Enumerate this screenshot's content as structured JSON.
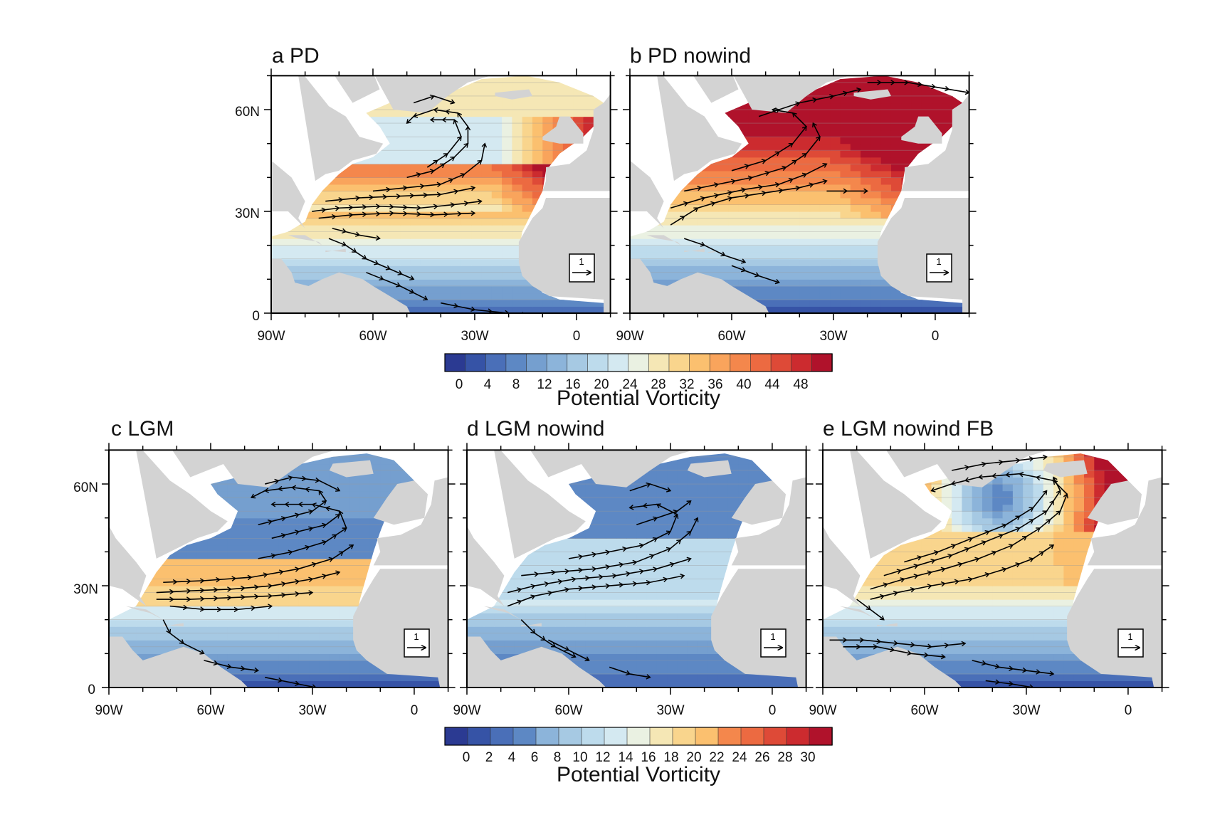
{
  "figure": {
    "panels": [
      {
        "id": "a",
        "title": "a PD",
        "lat_ticks": [
          "60N",
          "30N",
          "0"
        ],
        "lon_ticks": [
          "90W",
          "60W",
          "30W",
          "0"
        ],
        "reference_vector": "1"
      },
      {
        "id": "b",
        "title": "b PD nowind",
        "lat_ticks": [],
        "lon_ticks": [
          "90W",
          "60W",
          "30W",
          "0"
        ],
        "reference_vector": "1"
      },
      {
        "id": "c",
        "title": "c LGM",
        "lat_ticks": [
          "60N",
          "30N",
          "0"
        ],
        "lon_ticks": [
          "90W",
          "60W",
          "30W",
          "0"
        ],
        "reference_vector": "1"
      },
      {
        "id": "d",
        "title": "d LGM nowind",
        "lat_ticks": [],
        "lon_ticks": [
          "90W",
          "60W",
          "30W",
          "0"
        ],
        "reference_vector": "1"
      },
      {
        "id": "e",
        "title": "e LGM nowind FB",
        "lat_ticks": [],
        "lon_ticks": [
          "90W",
          "60W",
          "30W",
          "0"
        ],
        "reference_vector": "1"
      }
    ],
    "colorbars": [
      {
        "id": "top",
        "title": "Potential Vorticity",
        "labels": [
          "0",
          "4",
          "8",
          "12",
          "16",
          "20",
          "24",
          "28",
          "32",
          "36",
          "40",
          "44",
          "48"
        ]
      },
      {
        "id": "bottom",
        "title": "Potential Vorticity",
        "labels": [
          "0",
          "2",
          "4",
          "6",
          "8",
          "10",
          "12",
          "14",
          "16",
          "18",
          "20",
          "22",
          "24",
          "26",
          "28",
          "30"
        ]
      }
    ],
    "palette": [
      "#2b3a92",
      "#3653a6",
      "#4a6fb8",
      "#5d88c4",
      "#759fcf",
      "#8cb4da",
      "#a6c9e3",
      "#bddbec",
      "#d4e9f1",
      "#eaf1e2",
      "#f5e7b5",
      "#f9d58d",
      "#fbc06f",
      "#f9a45c",
      "#f4874c",
      "#ec6a41",
      "#de4a37",
      "#cc2b2f",
      "#b0122b"
    ],
    "land_color": "#d3d3d3"
  }
}
